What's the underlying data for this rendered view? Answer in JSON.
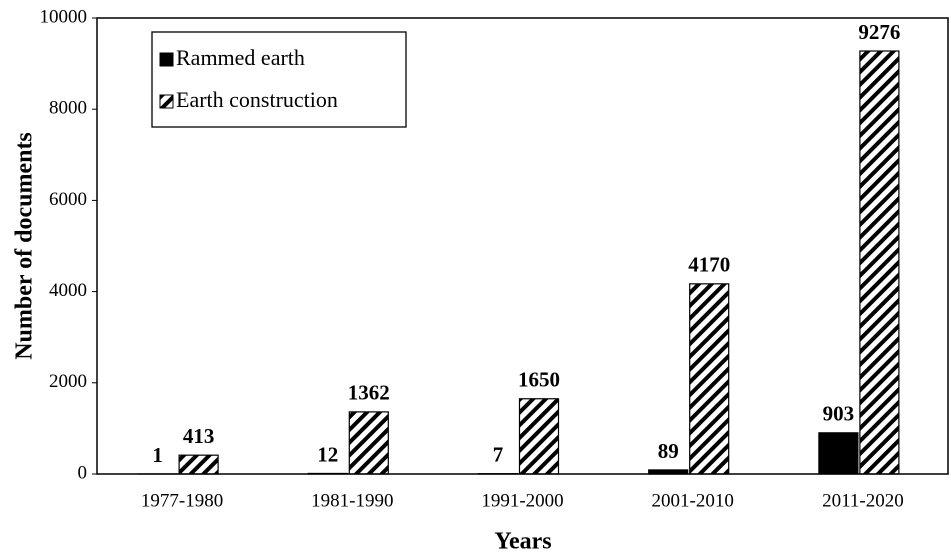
{
  "chart_data": {
    "type": "bar",
    "x_label": "Years",
    "y_label": "Number of documents",
    "categories": [
      "1977-1980",
      "1981-1990",
      "1991-2000",
      "2001-2010",
      "2011-2020"
    ],
    "series": [
      {
        "name": "Rammed earth",
        "color": "#000000",
        "pattern": "solid",
        "values": [
          1,
          12,
          7,
          89,
          903
        ]
      },
      {
        "name": "Earth construction",
        "color": "#000000",
        "pattern": "hatch",
        "values": [
          413,
          1362,
          1650,
          4170,
          9276
        ]
      }
    ],
    "ylim": [
      0,
      10000
    ],
    "yticks": [
      0,
      2000,
      4000,
      6000,
      8000,
      10000
    ],
    "legend": "upper left",
    "grid": false
  }
}
